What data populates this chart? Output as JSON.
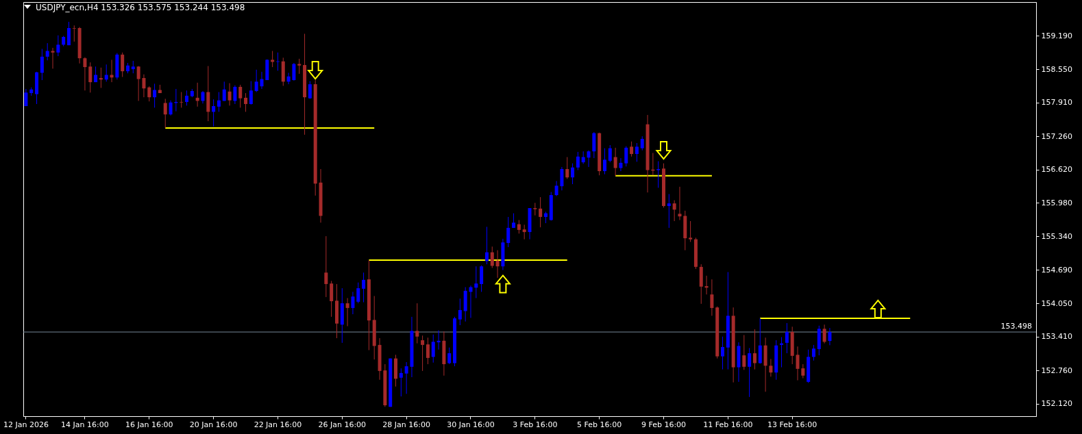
{
  "chart_data": {
    "type": "candlestick",
    "title": "USDJPY_ecn,H4 153.326 153.575 153.244 153.498",
    "categories": [
      "12 Jan 2026",
      null,
      null,
      null,
      null,
      null,
      null,
      null,
      null,
      null,
      null,
      "14 Jan 16:00",
      null,
      null,
      null,
      null,
      null,
      null,
      null,
      null,
      null,
      null,
      null,
      "16 Jan 16:00",
      null,
      null,
      null,
      null,
      null,
      null,
      null,
      null,
      null,
      null,
      null,
      "20 Jan 16:00",
      null,
      null,
      null,
      null,
      null,
      null,
      null,
      null,
      null,
      null,
      null,
      "22 Jan 16:00",
      null,
      null,
      null,
      null,
      null,
      null,
      null,
      null,
      null,
      null,
      null,
      "26 Jan 16:00",
      null,
      null,
      null,
      null,
      null,
      null,
      null,
      null,
      null,
      null,
      null,
      "28 Jan 16:00",
      null,
      null,
      null,
      null,
      null,
      null,
      null,
      null,
      null,
      null,
      null,
      "30 Jan 16:00",
      null,
      null,
      null,
      null,
      null,
      null,
      null,
      null,
      null,
      null,
      null,
      "3 Feb 16:00",
      null,
      null,
      null,
      null,
      null,
      null,
      null,
      null,
      null,
      null,
      null,
      "5 Feb 16:00",
      null,
      null,
      null,
      null,
      null,
      null,
      null,
      null,
      null,
      null,
      null,
      "9 Feb 16:00",
      null,
      null,
      null,
      null,
      null,
      null,
      null,
      null,
      null,
      null,
      null,
      "11 Feb 16:00",
      null,
      null,
      null,
      null,
      null,
      null,
      null,
      null,
      null,
      null,
      null,
      "13 Feb 16:00",
      null,
      null,
      null,
      null,
      null,
      null,
      null,
      null,
      null,
      null,
      null,
      null,
      null,
      null,
      null,
      null,
      null,
      null,
      null,
      null,
      null,
      null,
      null,
      null,
      null,
      null,
      null,
      null,
      null,
      null,
      null,
      null,
      null,
      null,
      null,
      null,
      null,
      null,
      null,
      null,
      null,
      null,
      null,
      null,
      null
    ],
    "ohlc": [
      [
        157.84,
        158.17,
        157.84,
        158.1
      ],
      [
        158.09,
        158.2,
        158.04,
        158.16
      ],
      [
        158.07,
        158.5,
        157.88,
        158.49
      ],
      [
        158.48,
        158.94,
        158.34,
        158.79
      ],
      [
        158.79,
        159.05,
        158.72,
        158.9
      ],
      [
        158.9,
        158.96,
        158.56,
        158.87
      ],
      [
        158.87,
        159.2,
        158.8,
        159.02
      ],
      [
        159.02,
        159.19,
        158.99,
        159.17
      ],
      [
        159.01,
        159.46,
        159.01,
        159.34
      ],
      [
        159.34,
        159.39,
        159.08,
        159.33
      ],
      [
        159.34,
        159.36,
        158.66,
        158.76
      ],
      [
        158.76,
        158.78,
        158.14,
        158.59
      ],
      [
        158.6,
        158.68,
        158.1,
        158.3
      ],
      [
        158.3,
        158.6,
        158.3,
        158.44
      ],
      [
        158.38,
        158.58,
        158.19,
        158.35
      ],
      [
        158.35,
        158.64,
        158.31,
        158.44
      ],
      [
        158.44,
        158.73,
        158.3,
        158.39
      ],
      [
        158.39,
        158.86,
        158.35,
        158.83
      ],
      [
        158.83,
        158.87,
        158.4,
        158.51
      ],
      [
        158.51,
        158.67,
        158.47,
        158.62
      ],
      [
        158.55,
        158.71,
        158.47,
        158.6
      ],
      [
        158.6,
        158.61,
        157.94,
        158.36
      ],
      [
        158.38,
        158.45,
        158.01,
        158.18
      ],
      [
        158.2,
        158.22,
        157.93,
        158.01
      ],
      [
        158.01,
        158.27,
        157.81,
        158.15
      ],
      [
        158.15,
        158.25,
        158.09,
        158.09
      ],
      [
        157.9,
        157.98,
        157.42,
        157.68
      ],
      [
        157.68,
        157.95,
        157.66,
        157.91
      ],
      [
        157.9,
        158.17,
        157.74,
        157.92
      ],
      [
        157.92,
        158.11,
        157.81,
        157.91
      ],
      [
        157.92,
        158.14,
        157.85,
        158.04
      ],
      [
        158.03,
        158.17,
        158.01,
        158.13
      ],
      [
        158.0,
        158.29,
        157.83,
        157.94
      ],
      [
        157.94,
        158.13,
        157.89,
        158.11
      ],
      [
        158.11,
        158.61,
        157.55,
        157.73
      ],
      [
        157.73,
        157.97,
        157.45,
        157.84
      ],
      [
        157.83,
        158.11,
        157.73,
        157.95
      ],
      [
        157.94,
        158.31,
        157.94,
        158.16
      ],
      [
        158.12,
        158.28,
        157.85,
        157.95
      ],
      [
        157.94,
        158.24,
        157.88,
        158.21
      ],
      [
        158.21,
        158.25,
        157.81,
        157.99
      ],
      [
        158.0,
        158.09,
        157.73,
        157.88
      ],
      [
        157.88,
        158.32,
        157.87,
        158.14
      ],
      [
        158.13,
        158.54,
        158.11,
        158.31
      ],
      [
        158.22,
        158.5,
        158.17,
        158.36
      ],
      [
        158.34,
        158.74,
        158.34,
        158.73
      ],
      [
        158.73,
        158.9,
        158.59,
        158.69
      ],
      [
        158.69,
        158.87,
        158.52,
        158.7
      ],
      [
        158.7,
        158.77,
        158.23,
        158.31
      ],
      [
        158.31,
        158.48,
        158.26,
        158.41
      ],
      [
        158.34,
        158.67,
        158.33,
        158.65
      ],
      [
        158.65,
        158.75,
        158.46,
        158.62
      ],
      [
        158.63,
        159.23,
        157.29,
        158.01
      ],
      [
        157.99,
        158.32,
        157.98,
        158.26
      ],
      [
        158.26,
        158.34,
        156.12,
        156.35
      ],
      [
        156.37,
        156.63,
        155.6,
        155.73
      ],
      [
        154.64,
        155.34,
        154.17,
        154.42
      ],
      [
        154.43,
        154.48,
        153.79,
        154.09
      ],
      [
        154.1,
        154.42,
        153.38,
        153.66
      ],
      [
        153.64,
        154.34,
        153.29,
        154.05
      ],
      [
        154.05,
        154.15,
        153.61,
        153.96
      ],
      [
        153.96,
        154.27,
        153.84,
        154.18
      ],
      [
        154.08,
        154.45,
        154.05,
        154.34
      ],
      [
        154.33,
        154.64,
        154.07,
        154.5
      ],
      [
        154.51,
        154.88,
        153.15,
        153.72
      ],
      [
        153.73,
        154.19,
        152.97,
        153.23
      ],
      [
        153.25,
        153.38,
        152.58,
        152.75
      ],
      [
        152.76,
        152.88,
        152.06,
        152.09
      ],
      [
        152.06,
        152.99,
        152.06,
        152.99
      ],
      [
        152.99,
        153.06,
        152.45,
        152.6
      ],
      [
        152.62,
        152.8,
        152.26,
        152.71
      ],
      [
        152.7,
        152.92,
        152.31,
        152.84
      ],
      [
        152.83,
        153.79,
        152.63,
        153.52
      ],
      [
        153.52,
        154.05,
        153.28,
        153.41
      ],
      [
        153.34,
        153.43,
        152.75,
        153.25
      ],
      [
        153.26,
        153.39,
        152.88,
        153.0
      ],
      [
        153.02,
        153.45,
        152.91,
        153.31
      ],
      [
        153.3,
        153.53,
        153.16,
        153.33
      ],
      [
        153.33,
        153.51,
        152.66,
        152.88
      ],
      [
        152.9,
        153.2,
        152.88,
        153.09
      ],
      [
        152.9,
        153.79,
        152.84,
        153.76
      ],
      [
        153.74,
        154.14,
        153.63,
        153.92
      ],
      [
        153.9,
        154.36,
        153.7,
        154.29
      ],
      [
        154.27,
        154.39,
        153.77,
        154.36
      ],
      [
        154.35,
        154.76,
        154.15,
        154.43
      ],
      [
        154.42,
        154.78,
        154.27,
        154.76
      ],
      [
        154.86,
        155.52,
        154.8,
        155.03
      ],
      [
        155.03,
        155.14,
        154.73,
        154.77
      ],
      [
        154.87,
        155.07,
        154.54,
        154.76
      ],
      [
        154.76,
        155.29,
        154.69,
        155.22
      ],
      [
        155.21,
        155.71,
        155.13,
        155.5
      ],
      [
        155.5,
        155.78,
        155.5,
        155.6
      ],
      [
        155.57,
        155.65,
        155.39,
        155.46
      ],
      [
        155.47,
        155.56,
        155.28,
        155.42
      ],
      [
        155.42,
        155.88,
        155.28,
        155.88
      ],
      [
        155.88,
        155.98,
        155.74,
        155.86
      ],
      [
        155.87,
        156.09,
        155.51,
        155.71
      ],
      [
        155.71,
        155.81,
        155.59,
        155.78
      ],
      [
        155.65,
        156.19,
        155.64,
        156.13
      ],
      [
        156.13,
        156.4,
        156.11,
        156.31
      ],
      [
        156.3,
        156.67,
        156.22,
        156.63
      ],
      [
        156.63,
        156.86,
        156.44,
        156.47
      ],
      [
        156.47,
        156.74,
        156.34,
        156.66
      ],
      [
        156.66,
        156.96,
        156.61,
        156.87
      ],
      [
        156.76,
        156.97,
        156.73,
        156.86
      ],
      [
        156.85,
        156.99,
        156.67,
        156.97
      ],
      [
        156.97,
        157.34,
        156.84,
        157.32
      ],
      [
        157.32,
        157.33,
        156.51,
        156.59
      ],
      [
        156.59,
        157.03,
        156.53,
        156.81
      ],
      [
        156.79,
        157.09,
        156.76,
        157.03
      ],
      [
        156.86,
        157.04,
        156.5,
        156.65
      ],
      [
        156.65,
        156.84,
        156.59,
        156.75
      ],
      [
        156.74,
        157.07,
        156.68,
        157.04
      ],
      [
        157.06,
        157.16,
        156.87,
        156.92
      ],
      [
        156.92,
        157.13,
        156.77,
        157.06
      ],
      [
        157.03,
        157.26,
        156.99,
        157.21
      ],
      [
        157.49,
        157.67,
        156.18,
        156.61
      ],
      [
        156.62,
        156.94,
        156.51,
        156.6
      ],
      [
        156.61,
        156.78,
        156.27,
        156.63
      ],
      [
        156.64,
        156.74,
        155.89,
        155.92
      ],
      [
        155.92,
        156.15,
        155.5,
        155.97
      ],
      [
        155.97,
        156.03,
        155.63,
        155.85
      ],
      [
        155.77,
        156.29,
        155.65,
        155.72
      ],
      [
        155.73,
        155.83,
        155.07,
        155.3
      ],
      [
        155.31,
        155.63,
        155.23,
        155.28
      ],
      [
        155.28,
        155.31,
        154.71,
        154.75
      ],
      [
        154.75,
        154.8,
        154.04,
        154.37
      ],
      [
        154.38,
        154.58,
        154.22,
        154.35
      ],
      [
        154.22,
        154.51,
        153.81,
        153.96
      ],
      [
        153.97,
        153.99,
        152.99,
        153.03
      ],
      [
        153.03,
        153.41,
        152.78,
        153.21
      ],
      [
        153.2,
        154.65,
        152.78,
        153.81
      ],
      [
        153.81,
        153.97,
        152.53,
        152.82
      ],
      [
        152.82,
        153.3,
        152.54,
        153.23
      ],
      [
        153.05,
        153.44,
        152.77,
        152.83
      ],
      [
        152.83,
        153.19,
        152.25,
        153.09
      ],
      [
        153.09,
        153.55,
        152.78,
        152.9
      ],
      [
        152.9,
        153.76,
        152.89,
        153.24
      ],
      [
        153.24,
        153.39,
        152.35,
        152.85
      ],
      [
        152.85,
        152.98,
        152.64,
        152.72
      ],
      [
        152.72,
        153.34,
        152.58,
        153.24
      ],
      [
        153.25,
        153.4,
        152.82,
        153.28
      ],
      [
        153.29,
        153.67,
        153.09,
        153.5
      ],
      [
        153.5,
        153.6,
        152.88,
        153.04
      ],
      [
        153.06,
        153.22,
        152.57,
        152.79
      ],
      [
        152.8,
        152.88,
        152.61,
        152.66
      ],
      [
        152.54,
        153.16,
        152.52,
        153.02
      ],
      [
        153.02,
        153.25,
        152.95,
        153.18
      ],
      [
        153.17,
        153.62,
        153.05,
        153.56
      ],
      [
        153.56,
        153.64,
        153.28,
        153.31
      ],
      [
        153.326,
        153.575,
        153.244,
        153.498
      ],
      null,
      null,
      null,
      null,
      null,
      null,
      null,
      null,
      null,
      null,
      null,
      null,
      null,
      null,
      null,
      null,
      null,
      null,
      null,
      null,
      null,
      null,
      null,
      null,
      null,
      null,
      null,
      null,
      null,
      null,
      null,
      null,
      null,
      null,
      null,
      null,
      null,
      null
    ],
    "colors": [
      "#0000ff",
      "#0000ff",
      "#0000ff",
      "#0000ff",
      "#0000ff",
      "#a52a2a",
      "#0000ff",
      "#0000ff",
      "#0000ff",
      "#a52a2a",
      "#a52a2a",
      "#a52a2a",
      "#a52a2a",
      "#0000ff",
      "#a52a2a",
      "#0000ff",
      "#a52a2a",
      "#0000ff",
      "#a52a2a",
      "#0000ff",
      "#0000ff",
      "#a52a2a",
      "#a52a2a",
      "#a52a2a",
      "#0000ff",
      "#a52a2a",
      "#a52a2a",
      "#0000ff",
      "#0000ff",
      "#a52a2a",
      "#0000ff",
      "#0000ff",
      "#a52a2a",
      "#0000ff",
      "#a52a2a",
      "#0000ff",
      "#0000ff",
      "#0000ff",
      "#a52a2a",
      "#0000ff",
      "#a52a2a",
      "#a52a2a",
      "#0000ff",
      "#0000ff",
      "#0000ff",
      "#0000ff",
      "#a52a2a",
      "#0000ff",
      "#a52a2a",
      "#0000ff",
      "#0000ff",
      "#a52a2a",
      "#a52a2a",
      "#0000ff",
      "#a52a2a",
      "#a52a2a",
      "#a52a2a",
      "#a52a2a",
      "#a52a2a",
      "#0000ff",
      "#a52a2a",
      "#0000ff",
      "#0000ff",
      "#0000ff",
      "#a52a2a",
      "#a52a2a",
      "#a52a2a",
      "#a52a2a",
      "#0000ff",
      "#a52a2a",
      "#0000ff",
      "#0000ff",
      "#0000ff",
      "#a52a2a",
      "#a52a2a",
      "#a52a2a",
      "#0000ff",
      "#0000ff",
      "#a52a2a",
      "#0000ff",
      "#0000ff",
      "#0000ff",
      "#0000ff",
      "#0000ff",
      "#0000ff",
      "#0000ff",
      "#0000ff",
      "#a52a2a",
      "#a52a2a",
      "#0000ff",
      "#0000ff",
      "#0000ff",
      "#a52a2a",
      "#a52a2a",
      "#0000ff",
      "#a52a2a",
      "#a52a2a",
      "#0000ff",
      "#0000ff",
      "#0000ff",
      "#0000ff",
      "#a52a2a",
      "#0000ff",
      "#0000ff",
      "#0000ff",
      "#0000ff",
      "#0000ff",
      "#a52a2a",
      "#0000ff",
      "#0000ff",
      "#a52a2a",
      "#0000ff",
      "#0000ff",
      "#a52a2a",
      "#0000ff",
      "#0000ff",
      "#a52a2a",
      "#a52a2a",
      "#0000ff",
      "#a52a2a",
      "#0000ff",
      "#a52a2a",
      "#a52a2a",
      "#a52a2a",
      "#a52a2a",
      "#a52a2a",
      "#a52a2a",
      "#a52a2a",
      "#a52a2a",
      "#a52a2a",
      "#0000ff",
      "#0000ff",
      "#a52a2a",
      "#0000ff",
      "#a52a2a",
      "#0000ff",
      "#a52a2a",
      "#0000ff",
      "#a52a2a",
      "#a52a2a",
      "#0000ff",
      "#0000ff",
      "#0000ff",
      "#a52a2a",
      "#a52a2a",
      "#a52a2a",
      "#0000ff",
      "#0000ff",
      "#0000ff",
      "#a52a2a",
      "#0000ff",
      null,
      null,
      null,
      null,
      null,
      null,
      null,
      null,
      null,
      null,
      null,
      null,
      null,
      null,
      null,
      null,
      null,
      null,
      null,
      null,
      null,
      null,
      null,
      null,
      null,
      null,
      null,
      null,
      null,
      null,
      null,
      null,
      null,
      null,
      null,
      null,
      null,
      null
    ],
    "ylim": [
      151.88,
      159.84
    ],
    "yticks": [
      {
        "value": 152.12,
        "label": "152.120"
      },
      {
        "value": 152.76,
        "label": "152.760"
      },
      {
        "value": 153.41,
        "label": "153.410"
      },
      {
        "value": 154.05,
        "label": "154.050"
      },
      {
        "value": 154.69,
        "label": "154.690"
      },
      {
        "value": 155.34,
        "label": "155.340"
      },
      {
        "value": 155.98,
        "label": "155.980"
      },
      {
        "value": 156.62,
        "label": "156.620"
      },
      {
        "value": 157.26,
        "label": "157.260"
      },
      {
        "value": 157.91,
        "label": "157.910"
      },
      {
        "value": 158.55,
        "label": "158.550"
      },
      {
        "value": 159.19,
        "label": "159.190"
      }
    ],
    "series": [
      {
        "type": "line",
        "color": "#ffff00",
        "values": [
          null,
          null,
          null,
          null,
          null,
          null,
          null,
          null,
          null,
          null,
          null,
          null,
          null,
          null,
          null,
          null,
          null,
          null,
          null,
          null,
          null,
          null,
          null,
          null,
          null,
          null,
          157.42,
          157.42,
          157.42,
          157.42,
          157.42,
          157.42,
          157.42,
          157.42,
          157.42,
          157.42,
          157.42,
          157.42,
          157.42,
          157.42,
          157.42,
          157.42,
          157.42,
          157.42,
          157.42,
          157.42,
          157.42,
          157.42,
          157.42,
          157.42,
          157.42,
          157.42,
          157.42,
          157.42,
          157.42,
          157.42,
          157.42,
          157.42,
          157.42,
          157.42,
          157.42,
          157.42,
          157.42,
          157.42,
          157.42,
          157.42,
          null,
          null,
          null,
          null,
          null,
          null,
          null,
          null,
          null,
          null,
          null,
          null,
          null,
          null,
          null,
          null,
          null,
          null,
          null,
          null,
          null,
          null,
          null,
          null,
          null,
          null,
          null,
          null,
          null,
          null,
          null,
          null,
          null,
          null,
          null,
          null,
          null,
          null,
          null,
          null,
          null,
          null,
          null,
          null,
          null,
          null,
          null,
          null,
          null,
          null,
          null,
          null,
          null,
          null,
          null,
          null,
          null,
          null,
          null,
          null,
          null,
          null,
          null,
          null,
          null,
          null,
          null,
          null,
          null,
          null,
          null,
          null,
          null,
          null,
          null,
          null,
          null,
          null,
          null,
          null,
          null,
          null,
          null,
          null,
          null,
          null,
          null,
          null,
          null,
          null,
          null,
          null,
          null,
          null,
          null,
          null,
          null,
          null,
          null,
          null,
          null,
          null,
          null,
          null,
          null,
          null,
          null,
          null,
          null,
          null,
          null,
          null,
          null,
          null,
          null,
          null,
          null,
          null,
          null,
          null,
          null,
          null,
          null
        ]
      },
      {
        "type": "line",
        "color": "#ffff00",
        "values": [
          null,
          null,
          null,
          null,
          null,
          null,
          null,
          null,
          null,
          null,
          null,
          null,
          null,
          null,
          null,
          null,
          null,
          null,
          null,
          null,
          null,
          null,
          null,
          null,
          null,
          null,
          null,
          null,
          null,
          null,
          null,
          null,
          null,
          null,
          null,
          null,
          null,
          null,
          null,
          null,
          null,
          null,
          null,
          null,
          null,
          null,
          null,
          null,
          null,
          null,
          null,
          null,
          null,
          null,
          null,
          null,
          null,
          null,
          null,
          null,
          null,
          null,
          null,
          null,
          154.88,
          154.88,
          154.88,
          154.88,
          154.88,
          154.88,
          154.88,
          154.88,
          154.88,
          154.88,
          154.88,
          154.88,
          154.88,
          154.88,
          154.88,
          154.88,
          154.88,
          154.88,
          154.88,
          154.88,
          154.88,
          154.88,
          154.88,
          154.88,
          154.88,
          154.88,
          154.88,
          154.88,
          154.88,
          154.88,
          154.88,
          154.88,
          154.88,
          154.88,
          154.88,
          154.88,
          154.88,
          154.88,
          null,
          null,
          null,
          null,
          null,
          null,
          null,
          null,
          null,
          null,
          null,
          null,
          null,
          null,
          null,
          null,
          null,
          null,
          null,
          null,
          null,
          null,
          null,
          null,
          null,
          null,
          null,
          null,
          null,
          null,
          null,
          null,
          null,
          null,
          null,
          null,
          null,
          null,
          null,
          null,
          null,
          null,
          null,
          null,
          null,
          null,
          null,
          null,
          null,
          null,
          null,
          null,
          null,
          null,
          null,
          null,
          null,
          null,
          null,
          null,
          null,
          null,
          null,
          null,
          null,
          null,
          null,
          null,
          null,
          null,
          null,
          null,
          null,
          null,
          null,
          null,
          null,
          null,
          null,
          null,
          null,
          null,
          null,
          null,
          null,
          null,
          null
        ]
      },
      {
        "type": "line",
        "color": "#ffff00",
        "values": [
          null,
          null,
          null,
          null,
          null,
          null,
          null,
          null,
          null,
          null,
          null,
          null,
          null,
          null,
          null,
          null,
          null,
          null,
          null,
          null,
          null,
          null,
          null,
          null,
          null,
          null,
          null,
          null,
          null,
          null,
          null,
          null,
          null,
          null,
          null,
          null,
          null,
          null,
          null,
          null,
          null,
          null,
          null,
          null,
          null,
          null,
          null,
          null,
          null,
          null,
          null,
          null,
          null,
          null,
          null,
          null,
          null,
          null,
          null,
          null,
          null,
          null,
          null,
          null,
          null,
          null,
          null,
          null,
          null,
          null,
          null,
          null,
          null,
          null,
          null,
          null,
          null,
          null,
          null,
          null,
          null,
          null,
          null,
          null,
          null,
          null,
          null,
          null,
          null,
          null,
          null,
          null,
          null,
          null,
          null,
          null,
          null,
          null,
          null,
          null,
          null,
          null,
          null,
          null,
          null,
          null,
          null,
          null,
          null,
          null,
          156.5,
          156.5,
          156.5,
          156.5,
          156.5,
          156.5,
          156.5,
          156.5,
          156.5,
          156.5,
          156.5,
          156.5,
          156.5,
          156.5,
          156.5,
          156.5,
          156.5,
          156.5,
          156.5,
          null,
          null,
          null,
          null,
          null,
          null,
          null,
          null,
          null,
          null,
          null,
          null,
          null,
          null,
          null,
          null,
          null,
          null,
          null,
          null,
          null,
          null,
          null,
          null,
          null,
          null,
          null,
          null,
          null,
          null,
          null,
          null,
          null,
          null,
          null,
          null,
          null,
          null,
          null,
          null,
          null,
          null,
          null,
          null,
          null,
          null,
          null,
          null,
          null,
          null,
          null,
          null,
          null,
          null,
          null,
          null,
          null,
          null,
          null,
          null
        ]
      },
      {
        "type": "line",
        "color": "#ffff00",
        "values": [
          null,
          null,
          null,
          null,
          null,
          null,
          null,
          null,
          null,
          null,
          null,
          null,
          null,
          null,
          null,
          null,
          null,
          null,
          null,
          null,
          null,
          null,
          null,
          null,
          null,
          null,
          null,
          null,
          null,
          null,
          null,
          null,
          null,
          null,
          null,
          null,
          null,
          null,
          null,
          null,
          null,
          null,
          null,
          null,
          null,
          null,
          null,
          null,
          null,
          null,
          null,
          null,
          null,
          null,
          null,
          null,
          null,
          null,
          null,
          null,
          null,
          null,
          null,
          null,
          null,
          null,
          null,
          null,
          null,
          null,
          null,
          null,
          null,
          null,
          null,
          null,
          null,
          null,
          null,
          null,
          null,
          null,
          null,
          null,
          null,
          null,
          null,
          null,
          null,
          null,
          null,
          null,
          null,
          null,
          null,
          null,
          null,
          null,
          null,
          null,
          null,
          null,
          null,
          null,
          null,
          null,
          null,
          null,
          null,
          null,
          null,
          null,
          null,
          null,
          null,
          null,
          null,
          null,
          null,
          null,
          null,
          null,
          null,
          null,
          null,
          null,
          null,
          null,
          null,
          null,
          null,
          null,
          null,
          null,
          null,
          null,
          null,
          153.76,
          153.76,
          153.76,
          153.76,
          153.76,
          153.76,
          153.76,
          153.76,
          153.76,
          153.76,
          153.76,
          153.76,
          153.76,
          153.76,
          153.76,
          153.76,
          153.76,
          153.76,
          153.76,
          153.76,
          153.76,
          153.76,
          153.76,
          153.76,
          153.76,
          153.76,
          153.76,
          153.76,
          153.76,
          null,
          null,
          null,
          null,
          null,
          null,
          null,
          null,
          null,
          null,
          null,
          null,
          null,
          null,
          null,
          null,
          null,
          null,
          null,
          null,
          null,
          null,
          null
        ]
      },
      {
        "type": "scatter",
        "color": "#ffff00",
        "marker": "triangle",
        "values": [
          null,
          null,
          null,
          null,
          null,
          null,
          null,
          null,
          null,
          null,
          null,
          null,
          null,
          null,
          null,
          null,
          null,
          null,
          null,
          null,
          null,
          null,
          null,
          null,
          null,
          null,
          null,
          null,
          null,
          null,
          null,
          null,
          null,
          null,
          null,
          null,
          null,
          null,
          null,
          null,
          null,
          null,
          null,
          null,
          null,
          null,
          null,
          null,
          null,
          null,
          null,
          null,
          null,
          null,
          null,
          null,
          null,
          null,
          null,
          null,
          null,
          null,
          null,
          null,
          null,
          null,
          null,
          null,
          null,
          null,
          null,
          null,
          null,
          null,
          null,
          null,
          null,
          null,
          null,
          null,
          null,
          null,
          null,
          null,
          null,
          null,
          null,
          null,
          null,
          154.42,
          null,
          null,
          null,
          null,
          null,
          null,
          null,
          null,
          null,
          null,
          null,
          null,
          null,
          null,
          null,
          null,
          null,
          null,
          null,
          null,
          null,
          null,
          null,
          null,
          null,
          null,
          null,
          null,
          null,
          null,
          null,
          null,
          null,
          null,
          null,
          null,
          null,
          null,
          null,
          null,
          null,
          null,
          null,
          null,
          null,
          null,
          null,
          null,
          null,
          null,
          null,
          null,
          null,
          null,
          null,
          null,
          null,
          null,
          null,
          null,
          null,
          null,
          null,
          null,
          null,
          null,
          null,
          null,
          null,
          153.94,
          null,
          null,
          null,
          null,
          null,
          null,
          null,
          null,
          null,
          null,
          null,
          null,
          null,
          null,
          null,
          null,
          null,
          null,
          null,
          null,
          null,
          null,
          null,
          null,
          null,
          null,
          null,
          null,
          null
        ]
      },
      {
        "type": "scatter",
        "color": "#ffff00",
        "marker": "triangle-down",
        "values": [
          null,
          null,
          null,
          null,
          null,
          null,
          null,
          null,
          null,
          null,
          null,
          null,
          null,
          null,
          null,
          null,
          null,
          null,
          null,
          null,
          null,
          null,
          null,
          null,
          null,
          null,
          null,
          null,
          null,
          null,
          null,
          null,
          null,
          null,
          null,
          null,
          null,
          null,
          null,
          null,
          null,
          null,
          null,
          null,
          null,
          null,
          null,
          null,
          null,
          null,
          null,
          null,
          null,
          null,
          158.53,
          null,
          null,
          null,
          null,
          null,
          null,
          null,
          null,
          null,
          null,
          null,
          null,
          null,
          null,
          null,
          null,
          null,
          null,
          null,
          null,
          null,
          null,
          null,
          null,
          null,
          null,
          null,
          null,
          null,
          null,
          null,
          null,
          null,
          null,
          null,
          null,
          null,
          null,
          null,
          null,
          null,
          null,
          null,
          null,
          null,
          null,
          null,
          null,
          null,
          null,
          null,
          null,
          null,
          null,
          null,
          null,
          null,
          null,
          null,
          null,
          null,
          null,
          null,
          null,
          156.99,
          null,
          null,
          null,
          null,
          null,
          null,
          null,
          null,
          null,
          null,
          null,
          null,
          null,
          null,
          null,
          null,
          null,
          null,
          null,
          null,
          null,
          null,
          null,
          null,
          null,
          null,
          null,
          null,
          null,
          null,
          null,
          null,
          null,
          null,
          null,
          null,
          null,
          null,
          null,
          null,
          null,
          null,
          null,
          null,
          null,
          null,
          null,
          null,
          null,
          null,
          null,
          null,
          null,
          null,
          null,
          null,
          null,
          null,
          null,
          null,
          null,
          null,
          null,
          null,
          null,
          null,
          null,
          null,
          null
        ]
      }
    ],
    "ref_lines": [
      {
        "axis": "y",
        "value": 153.498,
        "label": "153.498",
        "color": "#778899"
      }
    ]
  }
}
